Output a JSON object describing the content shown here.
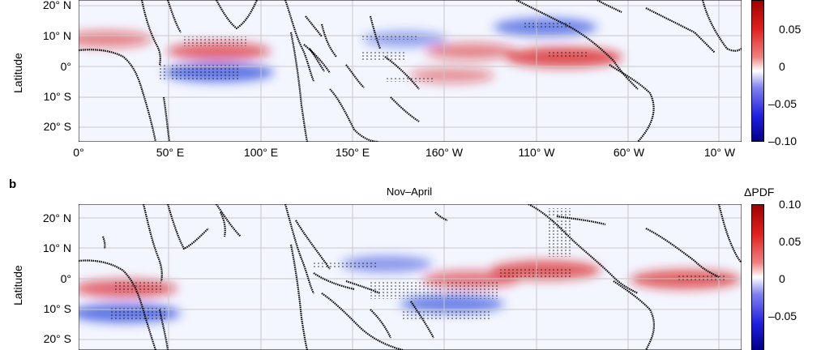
{
  "panel_a": {
    "y_axis_title": "Latitude",
    "lat_ticks": [
      "20° N",
      "10° N",
      "0°",
      "10° S",
      "20° S"
    ],
    "lon_ticks": [
      "0°",
      "50° E",
      "100° E",
      "150° E",
      "160° W",
      "110° W",
      "60° W",
      "10° W"
    ],
    "colorbar_ticks": [
      "0.05",
      "0",
      "–0.05",
      "–0.10"
    ]
  },
  "panel_b": {
    "letter": "b",
    "title": "Nov–April",
    "y_axis_title": "Latitude",
    "colorbar_label": "ΔPDF",
    "lat_ticks": [
      "20° N",
      "10° N",
      "0°",
      "10° S",
      "20° S"
    ],
    "colorbar_ticks": [
      "0.10",
      "0.05",
      "0",
      "–0.05"
    ]
  },
  "colors": {
    "positive": "#d7191c",
    "negative": "#1f3fd8",
    "coast": "#000000",
    "grid": "#c8c8c8"
  },
  "chart_data": {
    "type": "heatmap",
    "description_units": "ΔPDF",
    "colorbar_range": [
      -0.1,
      0.1
    ],
    "panels": [
      {
        "id": "a",
        "anomalies": [
          {
            "lon": 75,
            "lat": 5,
            "value": 0.06
          },
          {
            "lon": 75,
            "lat": -2,
            "value": -0.07
          },
          {
            "lon": 15,
            "lat": 9,
            "value": 0.04
          },
          {
            "lon": 260,
            "lat": 3,
            "value": 0.08
          },
          {
            "lon": 210,
            "lat": 5,
            "value": 0.04
          },
          {
            "lon": 200,
            "lat": -3,
            "value": 0.03
          },
          {
            "lon": 250,
            "lat": 13,
            "value": -0.06
          },
          {
            "lon": 175,
            "lat": 9,
            "value": -0.03
          }
        ]
      },
      {
        "id": "b",
        "anomalies": [
          {
            "lon": 25,
            "lat": -3,
            "value": 0.06
          },
          {
            "lon": 25,
            "lat": -11,
            "value": -0.07
          },
          {
            "lon": 210,
            "lat": 0,
            "value": 0.05
          },
          {
            "lon": 250,
            "lat": 3,
            "value": 0.07
          },
          {
            "lon": 200,
            "lat": -8,
            "value": -0.06
          },
          {
            "lon": 165,
            "lat": 5,
            "value": -0.04
          },
          {
            "lon": 325,
            "lat": 0,
            "value": 0.07
          }
        ]
      }
    ]
  }
}
